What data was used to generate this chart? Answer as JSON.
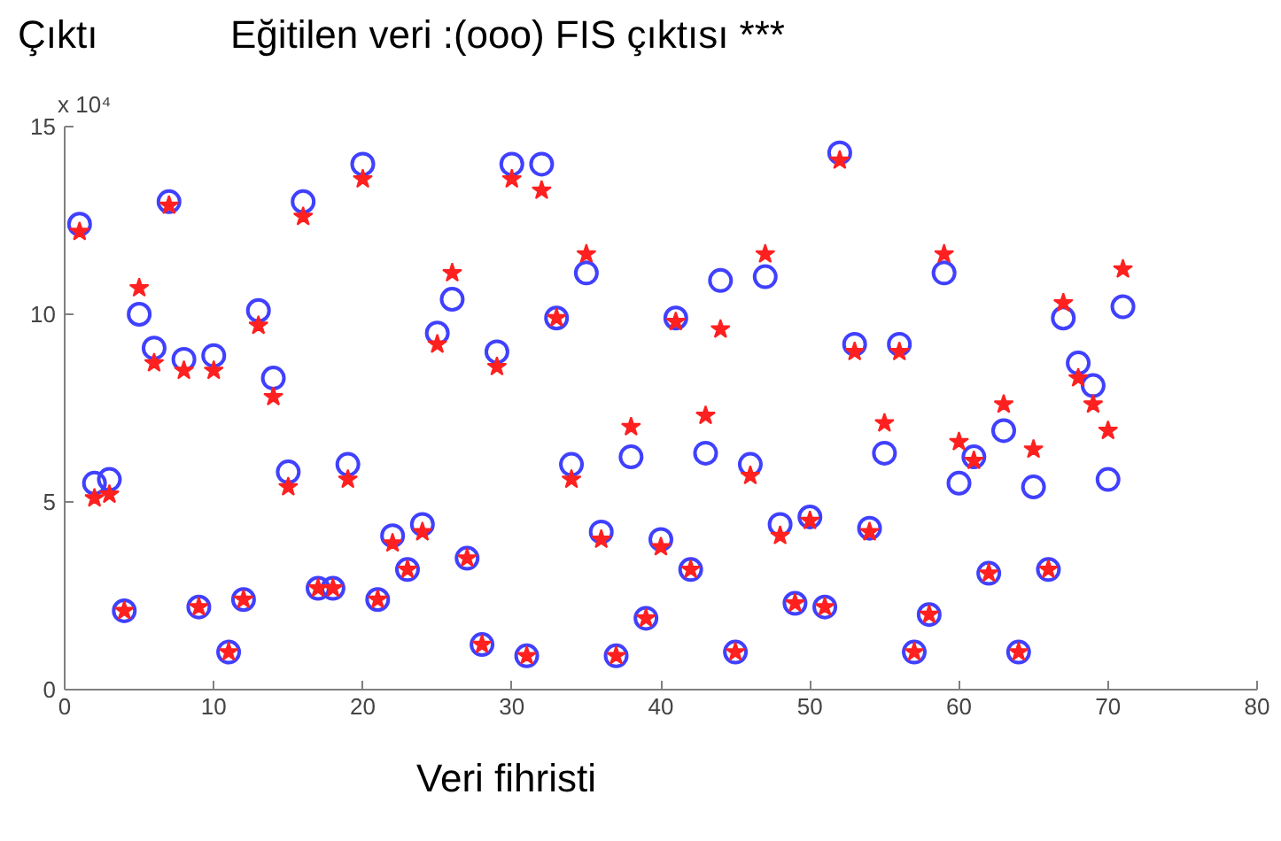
{
  "chart_data": {
    "type": "scatter",
    "title": "Eğitilen veri :(ooo) FIS çıktısı ***",
    "ylabel": "Çıktı",
    "xlabel": "Veri fihristi",
    "annotations": [
      "x 10⁴"
    ],
    "x": [
      1,
      2,
      3,
      4,
      5,
      6,
      7,
      8,
      9,
      10,
      11,
      12,
      13,
      14,
      15,
      16,
      17,
      18,
      19,
      20,
      21,
      22,
      23,
      24,
      25,
      26,
      27,
      28,
      29,
      30,
      31,
      32,
      33,
      34,
      35,
      36,
      37,
      38,
      39,
      40,
      41,
      42,
      43,
      44,
      45,
      46,
      47,
      48,
      49,
      50,
      51,
      52,
      53,
      54,
      55,
      56,
      57,
      58,
      59,
      60,
      61,
      62,
      63,
      64,
      65,
      66,
      67,
      68,
      69,
      70,
      71
    ],
    "xlim": [
      0,
      80
    ],
    "xticks": [
      0,
      10,
      20,
      30,
      40,
      50,
      60,
      70,
      80
    ],
    "ylim": [
      0,
      15
    ],
    "yticks": [
      0,
      5,
      10,
      15
    ],
    "grid": false,
    "series": [
      {
        "color": "#4040ff",
        "marker": "circle",
        "values": [
          12.4,
          5.5,
          5.6,
          2.1,
          10.0,
          9.1,
          13.0,
          8.8,
          2.2,
          8.9,
          1.0,
          2.4,
          10.1,
          8.3,
          5.8,
          13.0,
          2.7,
          2.7,
          6.0,
          14.0,
          2.4,
          4.1,
          3.2,
          4.4,
          9.5,
          10.4,
          3.5,
          1.2,
          9.0,
          14.0,
          0.9,
          14.0,
          9.9,
          6.0,
          11.1,
          4.2,
          0.9,
          6.2,
          1.9,
          4.0,
          9.9,
          3.2,
          6.3,
          10.9,
          1.0,
          6.0,
          11.0,
          4.4,
          2.3,
          4.6,
          2.2,
          14.3,
          9.2,
          4.3,
          6.3,
          9.2,
          1.0,
          2.0,
          11.1,
          5.5,
          6.2,
          3.1,
          6.9,
          1.0,
          5.4,
          3.2,
          9.9,
          8.7,
          8.1,
          5.6,
          10.2
        ]
      },
      {
        "color": "#ff2020",
        "marker": "star",
        "values": [
          12.2,
          5.1,
          5.2,
          2.1,
          10.7,
          8.7,
          12.9,
          8.5,
          2.2,
          8.5,
          1.0,
          2.4,
          9.7,
          7.8,
          5.4,
          12.6,
          2.7,
          2.7,
          5.6,
          13.6,
          2.4,
          3.9,
          3.2,
          4.2,
          9.2,
          11.1,
          3.5,
          1.2,
          8.6,
          13.6,
          0.9,
          13.3,
          9.9,
          5.6,
          11.6,
          4.0,
          0.9,
          7.0,
          1.9,
          3.8,
          9.8,
          3.2,
          7.3,
          9.6,
          1.0,
          5.7,
          11.6,
          4.1,
          2.3,
          4.5,
          2.2,
          14.1,
          9.0,
          4.2,
          7.1,
          9.0,
          1.0,
          2.0,
          11.6,
          6.6,
          6.1,
          3.1,
          7.6,
          1.0,
          6.4,
          3.2,
          10.3,
          8.3,
          7.6,
          6.9,
          11.2
        ]
      }
    ]
  }
}
